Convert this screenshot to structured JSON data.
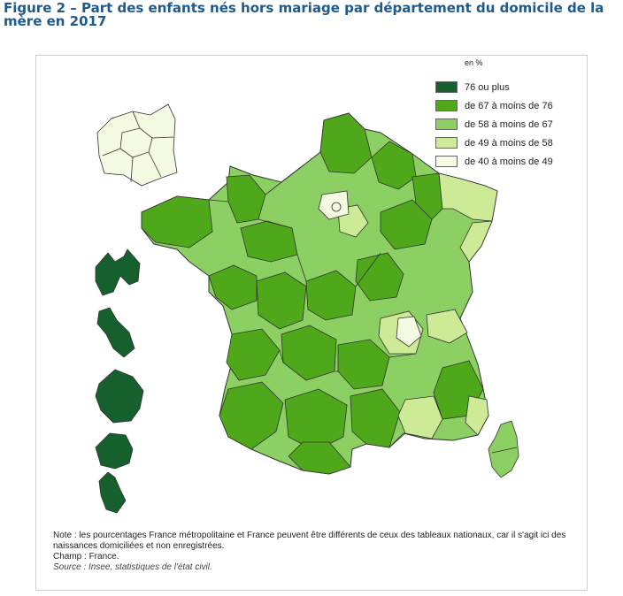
{
  "title": "Figure 2 – Part des enfants nés hors mariage par département du domicile de la mère en 2017",
  "legend": {
    "unit": "en %",
    "items": [
      {
        "label": "76 ou plus",
        "color": "#15602d"
      },
      {
        "label": "de 67 à moins de 76",
        "color": "#4ea81a"
      },
      {
        "label": "de 58 à moins de 67",
        "color": "#8cd063"
      },
      {
        "label": "de 49 à moins de 58",
        "color": "#cdeb96"
      },
      {
        "label": "de 40 à moins de 49",
        "color": "#f3fbe2"
      }
    ]
  },
  "notes": {
    "note": "Note : les pourcentages France métropolitaine et France peuvent être différents de ceux des tableaux nationaux, car il s'agit ici des naissances domiciliées et non enregistrées.",
    "champ": "Champ : France.",
    "source": "Source : Insee, statistiques de l'état civil."
  }
}
